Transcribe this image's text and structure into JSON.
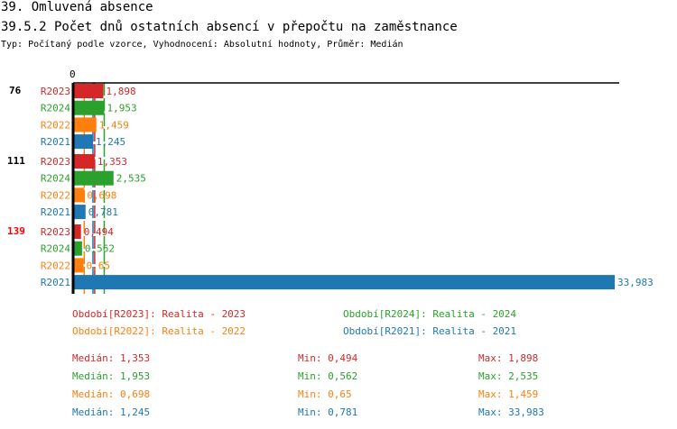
{
  "header": {
    "title": "39. Omluvená absence",
    "subtitle": "39.5.2 Počet dnů ostatních absencí v přepočtu na zaměstnance",
    "type_line": "Typ: Počítaný podle vzorce, Vyhodnocení: Absolutní hodnoty, Průměr: Medián"
  },
  "chart_data": {
    "type": "bar",
    "orientation": "horizontal",
    "xlim": [
      0,
      33.983
    ],
    "x_tick_labels": [
      "0"
    ],
    "groups": [
      {
        "label": "76",
        "label_color": "#000000",
        "bars": [
          {
            "series": "R2023",
            "value": 1.898,
            "label": "1,898"
          },
          {
            "series": "R2024",
            "value": 1.953,
            "label": "1,953"
          },
          {
            "series": "R2022",
            "value": 1.459,
            "label": "1,459"
          },
          {
            "series": "R2021",
            "value": 1.245,
            "label": "1,245"
          }
        ]
      },
      {
        "label": "111",
        "label_color": "#000000",
        "bars": [
          {
            "series": "R2023",
            "value": 1.353,
            "label": "1,353"
          },
          {
            "series": "R2024",
            "value": 2.535,
            "label": "2,535"
          },
          {
            "series": "R2022",
            "value": 0.698,
            "label": "0,698"
          },
          {
            "series": "R2021",
            "value": 0.781,
            "label": "0,781"
          }
        ]
      },
      {
        "label": "139",
        "label_color": "#ff0000",
        "bars": [
          {
            "series": "R2023",
            "value": 0.494,
            "label": "0,494"
          },
          {
            "series": "R2024",
            "value": 0.562,
            "label": "0,562"
          },
          {
            "series": "R2022",
            "value": 0.65,
            "label": "0,65"
          },
          {
            "series": "R2021",
            "value": 33.983,
            "label": "33,983"
          }
        ]
      }
    ],
    "series_colors": {
      "R2023": "#d62728",
      "R2024": "#2ca02c",
      "R2022": "#ff7f0e",
      "R2021": "#1f77b4"
    },
    "median_lines": [
      {
        "series": "R2022",
        "value": 0.698
      },
      {
        "series": "R2021",
        "value": 1.245
      },
      {
        "series": "R2023",
        "value": 1.353
      },
      {
        "series": "R2024",
        "value": 1.953
      }
    ],
    "legend": [
      {
        "text": "Období[R2023]: Realita - 2023",
        "color": "#d62728"
      },
      {
        "text": "Období[R2024]: Realita - 2024",
        "color": "#2ca02c"
      },
      {
        "text": "Období[R2022]: Realita - 2022",
        "color": "#ff7f0e"
      },
      {
        "text": "Období[R2021]: Realita - 2021",
        "color": "#1f77b4"
      }
    ],
    "stats": [
      {
        "median": "Medián: 1,353",
        "min": "Min: 0,494",
        "max": "Max: 1,898",
        "color": "#d62728"
      },
      {
        "median": "Medián: 1,953",
        "min": "Min: 0,562",
        "max": "Max: 2,535",
        "color": "#2ca02c"
      },
      {
        "median": "Medián: 0,698",
        "min": "Min: 0,65",
        "max": "Max: 1,459",
        "color": "#ff7f0e"
      },
      {
        "median": "Medián: 1,245",
        "min": "Min: 0,781",
        "max": "Max: 33,983",
        "color": "#1f77b4"
      }
    ]
  }
}
